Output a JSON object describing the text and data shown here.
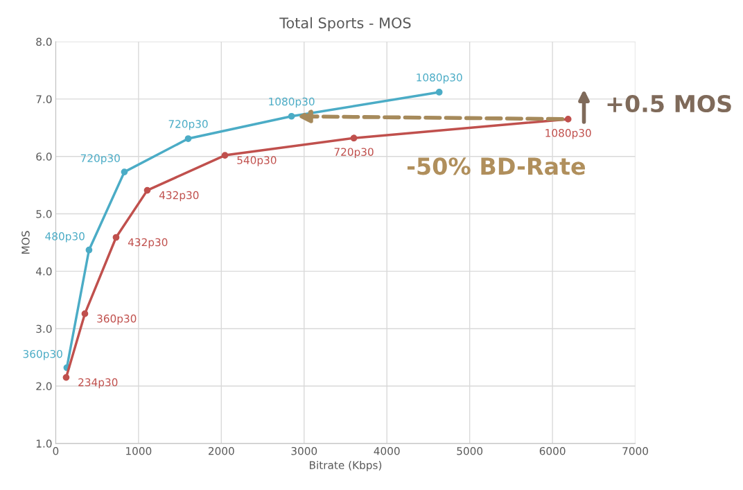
{
  "chart_data": {
    "type": "line",
    "title": "Total Sports - MOS",
    "xlabel": "Bitrate (Kbps)",
    "ylabel": "MOS",
    "xlim": [
      0,
      7000
    ],
    "xticks": [
      {
        "value": 0,
        "label": "0"
      },
      1000,
      2000,
      3000,
      4000,
      5000,
      6000,
      7000
    ],
    "ylim": [
      1.0,
      8.0
    ],
    "yticks": [
      {
        "value": 1,
        "label": "1.0"
      },
      {
        "value": 2,
        "label": "2.0"
      },
      {
        "value": 3,
        "label": "3.0"
      },
      {
        "value": 4,
        "label": "4.0"
      },
      {
        "value": 5,
        "label": "5.0"
      },
      {
        "value": 6,
        "label": "6.0"
      },
      {
        "value": 7,
        "label": "7.0"
      },
      {
        "value": 8,
        "label": "8.0"
      }
    ],
    "grid": true,
    "marker": "circle",
    "line_style": "solid",
    "series": [
      {
        "color": "#4bacc6",
        "x": [
          134,
          402,
          829,
          1600,
          2848,
          4632
        ],
        "values": [
          2.32,
          4.37,
          5.73,
          6.31,
          6.7,
          7.12
        ]
      },
      {
        "color": "#c0504d",
        "x": [
          126,
          352,
          729,
          1106,
          2044,
          3601,
          6189
        ],
        "values": [
          2.15,
          3.26,
          4.59,
          5.41,
          6.02,
          6.32,
          6.65
        ]
      }
    ],
    "annotations": [
      {
        "text": "360p30",
        "x": 134,
        "y": 2.32
      },
      {
        "text": "480p30",
        "x": 402,
        "y": 4.37
      },
      {
        "text": "720p30",
        "x": 829,
        "y": 5.73
      },
      {
        "text": "720p30",
        "x": 1600,
        "y": 6.31
      },
      {
        "text": "1080p30",
        "x": 2848,
        "y": 6.7
      },
      {
        "text": "1080p30",
        "x": 4632,
        "y": 7.12
      },
      {
        "text": "234p30",
        "x": 126,
        "y": 2.15
      },
      {
        "text": "360p30",
        "x": 352,
        "y": 3.26
      },
      {
        "text": "432p30",
        "x": 729,
        "y": 4.59
      },
      {
        "text": "432p30",
        "x": 1106,
        "y": 5.41
      },
      {
        "text": "540p30",
        "x": 2044,
        "y": 6.02
      },
      {
        "text": "720p30",
        "x": 3601,
        "y": 6.32
      },
      {
        "text": "1080p30",
        "x": 6189,
        "y": 6.65
      },
      "+0.5 MOS",
      "-50% BD-Rate"
    ]
  }
}
